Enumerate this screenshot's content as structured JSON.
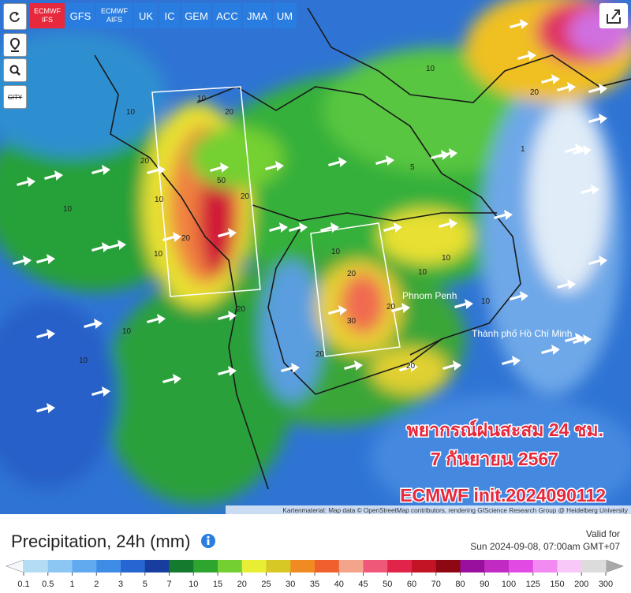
{
  "toolbar": {
    "models": [
      "ECMWF IFS",
      "GFS",
      "ECMWF AIFS",
      "UK",
      "IC",
      "GEM",
      "ACC",
      "JMA",
      "UM"
    ],
    "active_index": 0
  },
  "side_buttons": {
    "city": "CITY"
  },
  "map": {
    "places": [
      "Phnom Penh",
      "Thành phố Hồ Chí Minh"
    ],
    "contour_labels": [
      "10",
      "20",
      "10",
      "20",
      "10",
      "50",
      "20",
      "10",
      "20",
      "10",
      "10",
      "20",
      "10",
      "30",
      "20",
      "20",
      "10",
      "10",
      "20",
      "10",
      "1",
      "5",
      "20",
      "10",
      "10",
      "20"
    ],
    "caption": [
      "พยากรณ์ฝนสะสม 24 ชม.",
      "7 กันยายน 2567",
      "ECMWF init.2024090112"
    ],
    "attribution": "Kartenmaterial: Map data © OpenStreetMap contributors, rendering GIScience Research Group @ Heidelberg University"
  },
  "legend": {
    "title": "Precipitation, 24h (mm)",
    "valid_label": "Valid for",
    "valid_time": "Sun 2024-09-08, 07:00am GMT+07",
    "scale": [
      0.1,
      0.5,
      1,
      2,
      3,
      5,
      7,
      10,
      15,
      20,
      25,
      30,
      35,
      40,
      45,
      50,
      60,
      70,
      80,
      90,
      100,
      125,
      150,
      200,
      300
    ],
    "colors": [
      "#b4dcf4",
      "#8cc6f2",
      "#62aaf0",
      "#3f8ce6",
      "#2666d2",
      "#173e9e",
      "#137a2e",
      "#2ea52e",
      "#74d032",
      "#e8ee34",
      "#d8c826",
      "#f08a22",
      "#f0602c",
      "#f4a48a",
      "#f0587a",
      "#e0244a",
      "#c21424",
      "#8e0814",
      "#9a109e",
      "#c22ac4",
      "#e24ae4",
      "#f28af2",
      "#f8c8f8",
      "#dcdcdc"
    ],
    "under_color": "#f4f8fc",
    "over_color": "#a8a8a8"
  }
}
